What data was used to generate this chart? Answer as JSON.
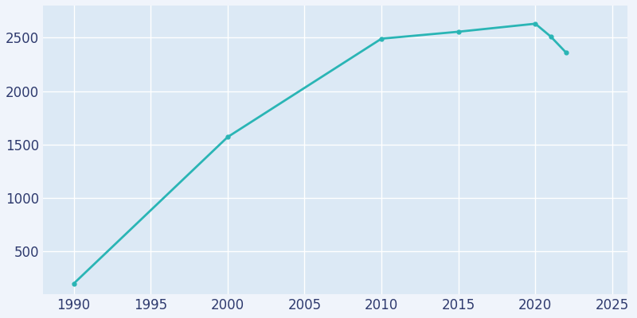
{
  "years": [
    1990,
    2000,
    2010,
    2015,
    2020,
    2021,
    2022
  ],
  "population": [
    200,
    1570,
    2490,
    2555,
    2630,
    2510,
    2360
  ],
  "line_color": "#2ab5b5",
  "marker": "o",
  "marker_size": 3.5,
  "bg_plot": "#dce9f5",
  "bg_fig": "#f0f4fb",
  "grid_color": "#ffffff",
  "tick_color": "#2e3a6e",
  "xlim": [
    1988,
    2026
  ],
  "ylim": [
    100,
    2800
  ],
  "xticks": [
    1990,
    1995,
    2000,
    2005,
    2010,
    2015,
    2020,
    2025
  ],
  "yticks": [
    500,
    1000,
    1500,
    2000,
    2500
  ],
  "line_width": 2.0,
  "tick_fontsize": 12
}
